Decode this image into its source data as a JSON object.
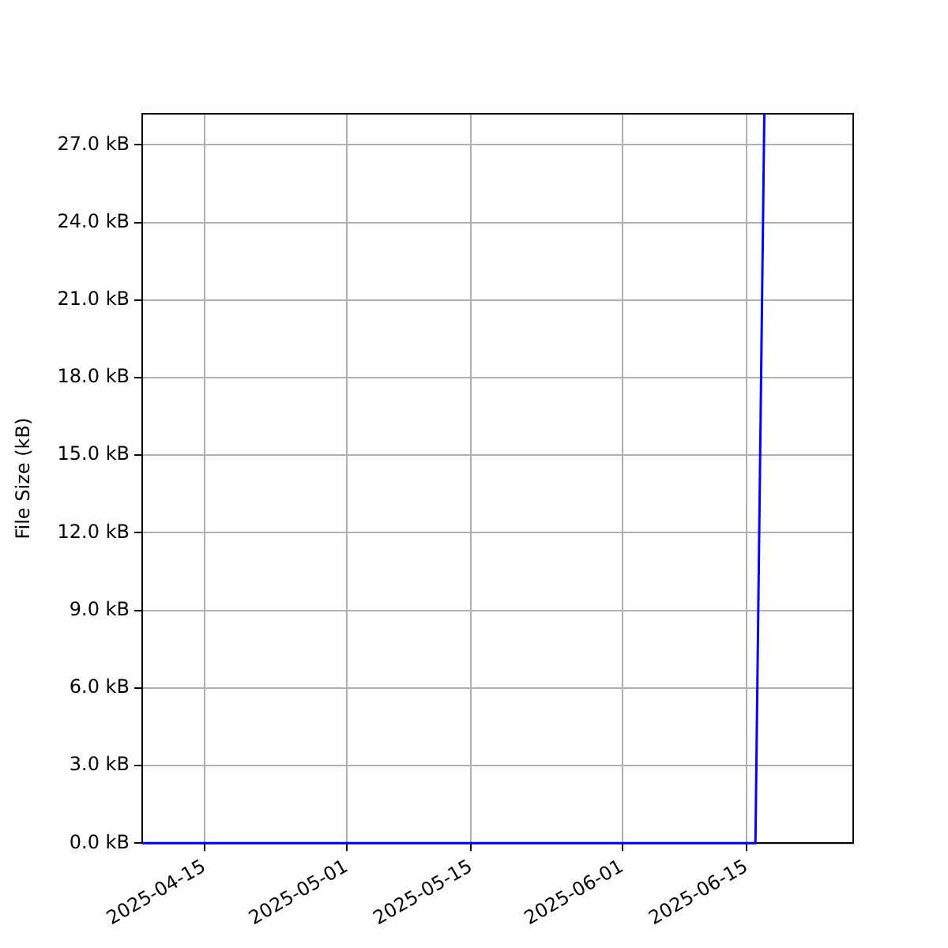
{
  "chart_data": {
    "type": "line",
    "ylabel": "File Size (kB)",
    "x": [
      "2025-04-08",
      "2025-06-16",
      "2025-06-17"
    ],
    "series": [
      {
        "color": "#0000ff",
        "values": [
          0,
          0,
          28.2
        ]
      }
    ],
    "xlim": [
      "2025-04-08",
      "2025-06-27"
    ],
    "xticks": [
      {
        "value": "2025-04-15",
        "label": "2025-04-15"
      },
      {
        "value": "2025-05-01",
        "label": "2025-05-01"
      },
      {
        "value": "2025-05-15",
        "label": "2025-05-15"
      },
      {
        "value": "2025-06-01",
        "label": "2025-06-01"
      },
      {
        "value": "2025-06-15",
        "label": "2025-06-15"
      }
    ],
    "ylim": [
      0,
      28.2
    ],
    "yticks": [
      {
        "value": 0,
        "label": "0.0 kB"
      },
      {
        "value": 3,
        "label": "3.0 kB"
      },
      {
        "value": 6,
        "label": "6.0 kB"
      },
      {
        "value": 9,
        "label": "9.0 kB"
      },
      {
        "value": 12,
        "label": "12.0 kB"
      },
      {
        "value": 15,
        "label": "15.0 kB"
      },
      {
        "value": 18,
        "label": "18.0 kB"
      },
      {
        "value": 21,
        "label": "21.0 kB"
      },
      {
        "value": 24,
        "label": "24.0 kB"
      },
      {
        "value": 27,
        "label": "27.0 kB"
      }
    ],
    "grid": true,
    "marker": "none",
    "line_style": "solid"
  }
}
